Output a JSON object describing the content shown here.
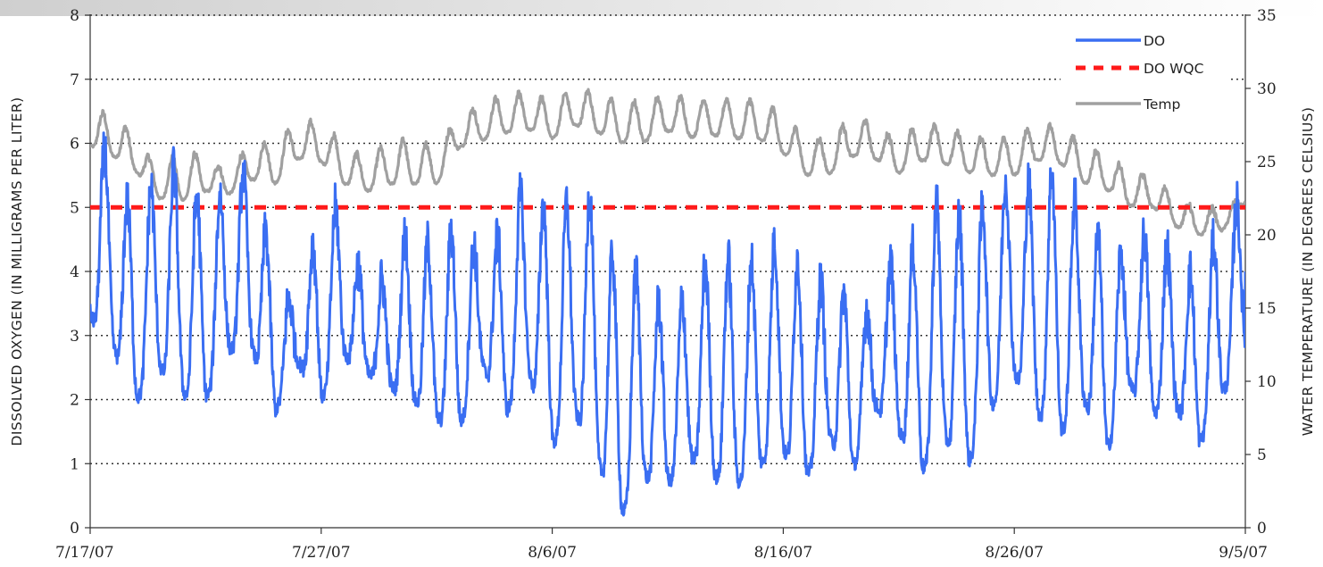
{
  "chart_data": {
    "type": "line",
    "title": "",
    "xlabel": "",
    "ylabel": "DISSOLVED OXYGEN (IN MILLIGRAMS PER LITER)",
    "y2label": "WATER TEMPERATURE (IN DEGREES CELSIUS)",
    "x_tick_labels": [
      "7/17/07",
      "7/27/07",
      "8/6/07",
      "8/16/07",
      "8/26/07",
      "9/5/07"
    ],
    "y_tick_labels": [
      "0",
      "1",
      "2",
      "3",
      "4",
      "5",
      "6",
      "7",
      "8"
    ],
    "y2_tick_labels": [
      "0",
      "5",
      "10",
      "15",
      "20",
      "25",
      "30",
      "35"
    ],
    "ylim": [
      0,
      8
    ],
    "y2lim": [
      0,
      35
    ],
    "grid": "horizontal dotted at each 1 mg/L",
    "legend_position": "top-right",
    "series": [
      {
        "name": "DO",
        "axis": "left",
        "color": "#3a6ef2",
        "style": "solid",
        "x": [
          "7/17",
          "7/18",
          "7/19",
          "7/20",
          "7/21",
          "7/22",
          "7/23",
          "7/24",
          "7/25",
          "7/26",
          "7/27",
          "7/28",
          "7/29",
          "7/30",
          "7/31",
          "8/1",
          "8/2",
          "8/3",
          "8/4",
          "8/5",
          "8/6",
          "8/7",
          "8/8",
          "8/9",
          "8/10",
          "8/11",
          "8/12",
          "8/13",
          "8/14",
          "8/15",
          "8/16",
          "8/17",
          "8/18",
          "8/19",
          "8/20",
          "8/21",
          "8/22",
          "8/23",
          "8/24",
          "8/25",
          "8/26",
          "8/27",
          "8/28",
          "8/29",
          "8/30",
          "8/31",
          "9/1",
          "9/2",
          "9/3",
          "9/4",
          "9/5"
        ],
        "max": [
          5.7,
          6.0,
          4.5,
          5.8,
          5.5,
          5.0,
          5.3,
          5.7,
          3.9,
          3.4,
          5.0,
          5.0,
          3.5,
          4.1,
          4.8,
          4.2,
          4.9,
          4.1,
          4.8,
          5.4,
          4.8,
          5.2,
          5.3,
          3.6,
          4.2,
          3.1,
          3.8,
          4.3,
          4.1,
          4.2,
          4.6,
          3.9,
          3.8,
          3.6,
          3.3,
          4.6,
          4.2,
          5.6,
          4.4,
          5.4,
          5.5,
          5.3,
          5.7,
          4.8,
          4.4,
          4.2,
          4.8,
          4.1,
          3.9,
          4.8,
          5.2
        ],
        "min": [
          3.3,
          2.8,
          2.0,
          2.5,
          2.1,
          2.0,
          2.8,
          2.8,
          1.8,
          2.6,
          2.0,
          2.7,
          2.4,
          2.2,
          2.0,
          1.7,
          1.6,
          2.5,
          1.8,
          2.4,
          1.3,
          1.8,
          1.0,
          0.2,
          0.8,
          0.7,
          1.1,
          0.8,
          0.7,
          1.0,
          1.2,
          0.8,
          1.4,
          0.9,
          1.9,
          1.5,
          0.9,
          1.4,
          1.0,
          1.9,
          2.4,
          1.8,
          1.5,
          2.0,
          1.2,
          2.2,
          1.8,
          1.9,
          1.3,
          2.1,
          2.8
        ]
      },
      {
        "name": "DO WQC",
        "axis": "left",
        "color": "#ff1a1a",
        "style": "dashed",
        "x": [
          "7/17/07",
          "9/5/07"
        ],
        "values": [
          5,
          5
        ]
      },
      {
        "name": "Temp",
        "axis": "right",
        "color": "#a0a0a0",
        "style": "solid",
        "x": [
          "7/17",
          "7/18",
          "7/19",
          "7/20",
          "7/21",
          "7/22",
          "7/23",
          "7/24",
          "7/25",
          "7/26",
          "7/27",
          "7/28",
          "7/29",
          "7/30",
          "7/31",
          "8/1",
          "8/2",
          "8/3",
          "8/4",
          "8/5",
          "8/6",
          "8/7",
          "8/8",
          "8/9",
          "8/10",
          "8/11",
          "8/12",
          "8/13",
          "8/14",
          "8/15",
          "8/16",
          "8/17",
          "8/18",
          "8/19",
          "8/20",
          "8/21",
          "8/22",
          "8/23",
          "8/24",
          "8/25",
          "8/26",
          "8/27",
          "8/28",
          "8/29",
          "8/30",
          "8/31",
          "9/1",
          "9/2",
          "9/3",
          "9/4",
          "9/5"
        ],
        "max": [
          28.3,
          28.3,
          26.5,
          24.3,
          26.0,
          25.1,
          24.4,
          26.3,
          26.3,
          27.8,
          27.6,
          26.1,
          25.0,
          26.6,
          26.4,
          26.0,
          28.1,
          28.9,
          29.6,
          29.7,
          29.0,
          30.1,
          29.5,
          29.0,
          29.1,
          29.6,
          29.2,
          29.3,
          29.2,
          29.2,
          28.1,
          26.5,
          26.6,
          28.1,
          27.5,
          26.3,
          27.8,
          27.3,
          26.7,
          26.5,
          26.7,
          27.6,
          27.4,
          26.0,
          25.5,
          24.2,
          24.0,
          22.5,
          21.7,
          21.9,
          22.4
        ],
        "min": [
          26.1,
          25.4,
          24.3,
          22.5,
          22.4,
          23.0,
          22.8,
          23.8,
          23.5,
          25.2,
          25.0,
          23.5,
          23.0,
          23.5,
          23.5,
          23.5,
          26.0,
          26.5,
          27.0,
          27.2,
          26.6,
          27.5,
          27.0,
          26.3,
          26.4,
          27.1,
          26.7,
          26.8,
          26.6,
          26.5,
          25.6,
          24.1,
          24.2,
          25.4,
          25.2,
          24.2,
          25.1,
          24.9,
          24.3,
          24.1,
          24.1,
          25.1,
          24.9,
          23.6,
          23.1,
          22.0,
          21.9,
          20.6,
          20.0,
          20.3,
          22.2
        ]
      }
    ]
  }
}
